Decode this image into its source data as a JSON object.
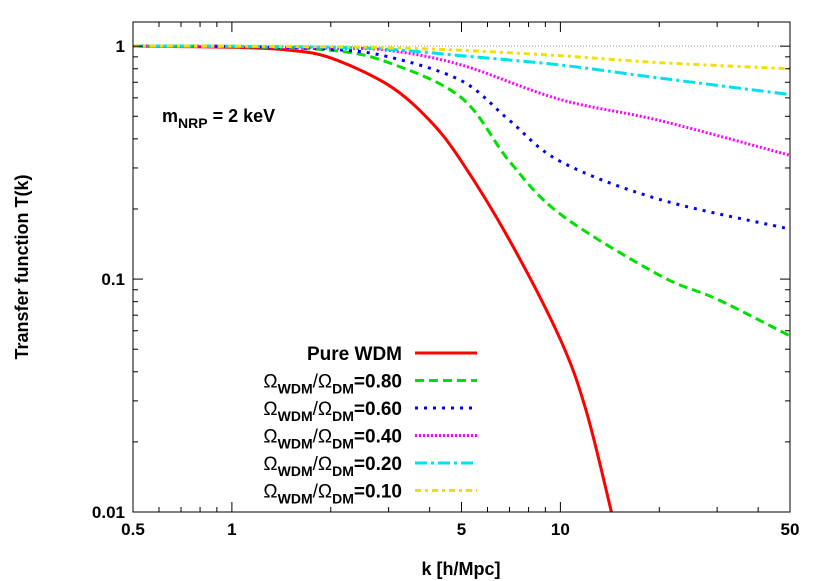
{
  "chart_data": {
    "type": "line",
    "xlabel": "k [h/Mpc]",
    "ylabel": "Transfer function T(k)",
    "annotation": {
      "main": "m",
      "sub": "NRP",
      "rest": " = 2 keV"
    },
    "x_scale": "log",
    "y_scale": "log",
    "xlim": [
      0.5,
      50
    ],
    "ylim": [
      0.01,
      1.27
    ],
    "x_ticks": [
      "0.5",
      "1",
      "5",
      "10",
      "50"
    ],
    "x_tick_values": [
      0.5,
      1,
      5,
      10,
      50
    ],
    "y_ticks": [
      "0.01",
      "0.1",
      "1"
    ],
    "y_tick_values": [
      0.01,
      0.1,
      1
    ],
    "grid": false,
    "legend_position": "bottom-center",
    "reference_line": {
      "y": 1,
      "color": "#999999"
    },
    "series": [
      {
        "name": "Pure WDM",
        "label_main": "Pure WDM",
        "color": "#ff0000",
        "dash": "solid",
        "x": [
          0.5,
          1,
          1.5,
          2,
          3,
          4,
          5,
          7,
          10,
          12,
          14.3
        ],
        "y": [
          1.0,
          0.99,
          0.96,
          0.89,
          0.68,
          0.48,
          0.32,
          0.147,
          0.055,
          0.027,
          0.01
        ]
      },
      {
        "name": "ΩWDM/ΩDM=0.80",
        "label_value": "=0.80",
        "color": "#00e000",
        "dash": "dashed",
        "x": [
          0.5,
          1,
          2,
          3,
          5,
          7,
          10,
          20,
          30,
          50
        ],
        "y": [
          1.0,
          0.995,
          0.96,
          0.85,
          0.6,
          0.32,
          0.19,
          0.104,
          0.082,
          0.057
        ]
      },
      {
        "name": "ΩWDM/ΩDM=0.60",
        "label_value": "=0.60",
        "color": "#0000ee",
        "dash": "dotted",
        "x": [
          0.5,
          1,
          2,
          3,
          5,
          7,
          10,
          20,
          50
        ],
        "y": [
          1.0,
          0.997,
          0.97,
          0.9,
          0.71,
          0.48,
          0.32,
          0.22,
          0.164
        ]
      },
      {
        "name": "ΩWDM/ΩDM=0.40",
        "label_value": "=0.40",
        "color": "#ff00ff",
        "dash": "fine-dotted",
        "x": [
          0.5,
          1,
          2,
          3,
          5,
          10,
          20,
          50
        ],
        "y": [
          1.0,
          0.998,
          0.98,
          0.96,
          0.83,
          0.59,
          0.48,
          0.34
        ]
      },
      {
        "name": "ΩWDM/ΩDM=0.20",
        "label_value": "=0.20",
        "color": "#00e0ee",
        "dash": "dash-dot",
        "x": [
          0.5,
          1,
          2,
          3,
          5,
          10,
          20,
          50
        ],
        "y": [
          1.0,
          0.999,
          0.99,
          0.97,
          0.91,
          0.83,
          0.73,
          0.62
        ]
      },
      {
        "name": "ΩWDM/ΩDM=0.10",
        "label_value": "=0.10",
        "color": "#f0e000",
        "dash": "dash-dot-dot",
        "x": [
          0.5,
          1,
          2,
          3,
          5,
          10,
          20,
          50
        ],
        "y": [
          1.0,
          1.0,
          0.995,
          0.985,
          0.96,
          0.91,
          0.85,
          0.8
        ]
      }
    ],
    "legend_symbols": {
      "omega": "Ω",
      "wdm": "WDM",
      "slash": "/",
      "dm": "DM"
    }
  }
}
